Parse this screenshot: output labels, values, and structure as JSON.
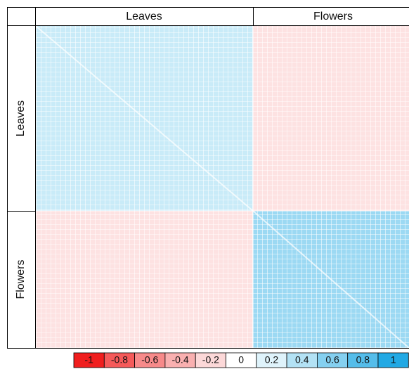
{
  "chart_data": {
    "type": "heatmap",
    "row_labels": [
      "Leaves",
      "Flowers"
    ],
    "col_labels": [
      "Leaves",
      "Flowers"
    ],
    "values": [
      [
        0.3,
        -0.15
      ],
      [
        -0.15,
        0.5
      ]
    ],
    "colorbar": {
      "ticks": [
        -1,
        -0.8,
        -0.6,
        -0.4,
        -0.2,
        0,
        0.2,
        0.4,
        0.6,
        0.8,
        1
      ],
      "colors": [
        "#f01e1e",
        "#f55a5a",
        "#f78a8a",
        "#f9b0b0",
        "#fcd8d8",
        "#ffffff",
        "#dff3fb",
        "#b3e2f5",
        "#85d0f0",
        "#55bdea",
        "#22a9e4"
      ]
    }
  }
}
